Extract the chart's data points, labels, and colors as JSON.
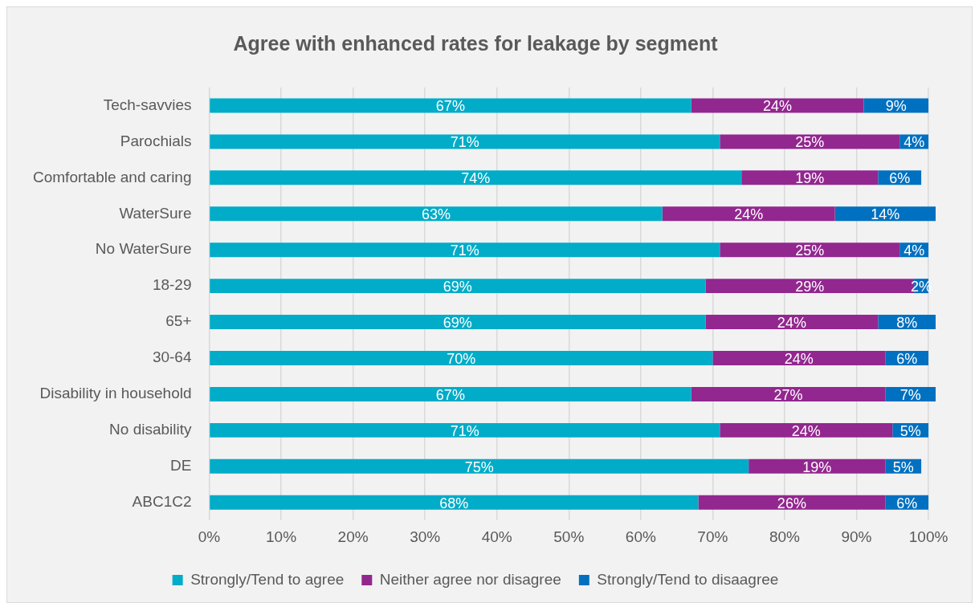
{
  "chart_data": {
    "type": "bar",
    "orientation": "horizontal",
    "stacked": true,
    "title": "Agree with enhanced rates for leakage by segment",
    "categories": [
      "Tech-savvies",
      "Parochials",
      "Comfortable and caring",
      "WaterSure",
      "No WaterSure",
      "18-29",
      "65+",
      "30-64",
      "Disability in household",
      "No disability",
      "DE",
      "ABC1C2"
    ],
    "series": [
      {
        "name": "Strongly/Tend to agree",
        "color": "#00acc8",
        "values": [
          67,
          71,
          74,
          63,
          71,
          69,
          69,
          70,
          67,
          71,
          75,
          68
        ],
        "value_labels": [
          "67%",
          "71%",
          "74%",
          "63%",
          "71%",
          "69%",
          "69%",
          "70%",
          "67%",
          "71%",
          "75%",
          "68%"
        ]
      },
      {
        "name": "Neither agree nor disagree",
        "color": "#92278f",
        "values": [
          24,
          25,
          19,
          24,
          25,
          29,
          24,
          24,
          27,
          24,
          19,
          26
        ],
        "value_labels": [
          "24%",
          "25%",
          "19%",
          "24%",
          "25%",
          "29%",
          "24%",
          "24%",
          "27%",
          "24%",
          "19%",
          "26%"
        ]
      },
      {
        "name": "Strongly/Tend to disaagree",
        "color": "#0070c0",
        "values": [
          9,
          4,
          6,
          14,
          4,
          2,
          8,
          6,
          7,
          5,
          5,
          6
        ],
        "value_labels": [
          "9%",
          "4%",
          "6%",
          "14%",
          "4%",
          "2%",
          "8%",
          "6%",
          "7%",
          "5%",
          "5%",
          "6%"
        ]
      }
    ],
    "xlim": [
      0,
      101
    ],
    "xticks": [
      {
        "value": 0,
        "label": "0%"
      },
      {
        "value": 10,
        "label": "10%"
      },
      {
        "value": 20,
        "label": "20%"
      },
      {
        "value": 30,
        "label": "30%"
      },
      {
        "value": 40,
        "label": "40%"
      },
      {
        "value": 50,
        "label": "50%"
      },
      {
        "value": 60,
        "label": "60%"
      },
      {
        "value": 70,
        "label": "70%"
      },
      {
        "value": 80,
        "label": "80%"
      },
      {
        "value": 90,
        "label": "90%"
      },
      {
        "value": 100,
        "label": "100%"
      }
    ],
    "grid": "x",
    "legend": "bottom"
  }
}
